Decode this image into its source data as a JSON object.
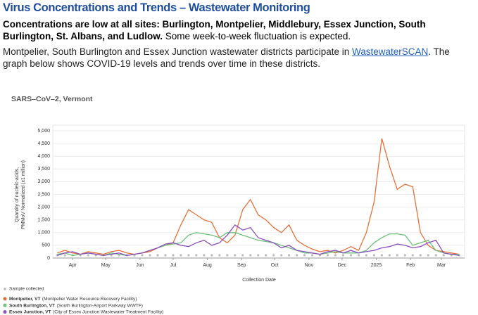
{
  "header": {
    "title": "Virus Concentrations and Trends – Wastewater Monitoring",
    "bold_line": "Concentrations are low at all sites: Burlington, Montpelier, Middlebury, Essex Junction, South Burlington, St. Albans, and Ludlow.",
    "note": "Some week-to-week fluctuation is expected."
  },
  "paragraph": {
    "before": "Montpelier, South Burlington and Essex Junction wastewater districts participate in ",
    "link": "WastewaterSCAN",
    "after": ". The graph below shows COVID-19 levels and trends over time in these districts."
  },
  "chart_data": {
    "type": "line",
    "title": "SARS–CoV–2, Vermont",
    "ylabel": [
      "Quantity of nucleic-acids,",
      "PMMoV Normalized (x1 million)"
    ],
    "xlabel": "Collection Date",
    "x": [
      -14,
      -7,
      0,
      7,
      14,
      21,
      28,
      35,
      42,
      49,
      56,
      63,
      70,
      77,
      84,
      91,
      98,
      105,
      112,
      119,
      126,
      133,
      140,
      147,
      154,
      161,
      168,
      175,
      182,
      189,
      196,
      203,
      210,
      217,
      224,
      231,
      238,
      245,
      252,
      259,
      266,
      273,
      280,
      287,
      294,
      301,
      308,
      315,
      322,
      329,
      336,
      343,
      350
    ],
    "xlim": [
      -18,
      355
    ],
    "xticks": [
      {
        "value": 0,
        "label": "Apr"
      },
      {
        "value": 30,
        "label": "May"
      },
      {
        "value": 61,
        "label": "Jun"
      },
      {
        "value": 91,
        "label": "Jul"
      },
      {
        "value": 122,
        "label": "Aug"
      },
      {
        "value": 153,
        "label": "Sep"
      },
      {
        "value": 183,
        "label": "Oct"
      },
      {
        "value": 214,
        "label": "Nov"
      },
      {
        "value": 244,
        "label": "Dec"
      },
      {
        "value": 275,
        "label": "2025"
      },
      {
        "value": 306,
        "label": "Feb"
      },
      {
        "value": 334,
        "label": "Mar"
      }
    ],
    "ylim": [
      0,
      5000
    ],
    "yticks": [
      0,
      500,
      {
        "value": 1000,
        "label": "1,000"
      },
      {
        "value": 1500,
        "label": "1,500"
      },
      {
        "value": 2000,
        "label": "2,000"
      },
      {
        "value": 2500,
        "label": "2,500"
      },
      {
        "value": 3000,
        "label": "3,000"
      },
      {
        "value": 3500,
        "label": "3,500"
      },
      {
        "value": 4000,
        "label": "4,000"
      },
      {
        "value": 4500,
        "label": "4,500"
      },
      {
        "value": 5000,
        "label": "5,000"
      }
    ],
    "grid": true,
    "sample_label": "Sample collected",
    "sample_color": "#bbbbbb",
    "series": [
      {
        "name": "Montpelier, VT",
        "facility": "(Montpelier Water Resource Recovery Facility)",
        "color": "#e8703a",
        "values": [
          200,
          300,
          200,
          150,
          250,
          200,
          150,
          250,
          300,
          200,
          150,
          200,
          250,
          400,
          500,
          600,
          1300,
          1900,
          1700,
          1500,
          1400,
          800,
          600,
          900,
          1900,
          2300,
          1700,
          1500,
          1200,
          1000,
          1300,
          700,
          500,
          350,
          250,
          300,
          200,
          300,
          450,
          300,
          1000,
          2200,
          4700,
          3600,
          2700,
          2900,
          2800,
          1000,
          500,
          300,
          250,
          200,
          150
        ]
      },
      {
        "name": "South Burlington, VT",
        "facility": "(South Burlington-Airport Parkway WWTF)",
        "color": "#6cc27a",
        "values": [
          150,
          200,
          100,
          150,
          200,
          150,
          100,
          200,
          150,
          100,
          150,
          200,
          300,
          400,
          500,
          550,
          600,
          900,
          1000,
          950,
          900,
          800,
          1000,
          1000,
          900,
          800,
          700,
          650,
          600,
          500,
          400,
          300,
          200,
          200,
          150,
          200,
          250,
          200,
          200,
          200,
          300,
          600,
          800,
          950,
          950,
          900,
          500,
          600,
          700,
          300,
          200,
          150,
          150
        ]
      },
      {
        "name": "Essex Junction, VT",
        "facility": "(City of Essex Junction Wastewater Treatment Facility)",
        "color": "#8a4fc0",
        "values": [
          100,
          200,
          250,
          150,
          200,
          150,
          100,
          150,
          200,
          100,
          150,
          200,
          300,
          400,
          550,
          600,
          500,
          450,
          600,
          700,
          500,
          600,
          900,
          1300,
          1100,
          1200,
          800,
          700,
          600,
          400,
          500,
          300,
          250,
          200,
          150,
          250,
          300,
          200,
          300,
          200,
          250,
          300,
          400,
          450,
          550,
          500,
          400,
          450,
          600,
          700,
          200,
          150,
          100
        ]
      }
    ]
  }
}
